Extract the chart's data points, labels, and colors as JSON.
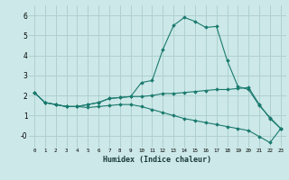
{
  "xlabel": "Humidex (Indice chaleur)",
  "bg_color": "#cce8e8",
  "grid_color": "#b0d0d0",
  "line_color": "#1a7a6e",
  "x_values": [
    0,
    1,
    2,
    3,
    4,
    5,
    6,
    7,
    8,
    9,
    10,
    11,
    12,
    13,
    14,
    15,
    16,
    17,
    18,
    19,
    20,
    21,
    22,
    23
  ],
  "series": [
    [
      2.15,
      1.65,
      1.55,
      1.45,
      1.45,
      1.55,
      1.65,
      1.85,
      1.9,
      1.95,
      2.65,
      2.75,
      4.3,
      5.5,
      5.9,
      5.7,
      5.4,
      5.45,
      3.75,
      2.45,
      2.3,
      1.5,
      0.9,
      0.35
    ],
    [
      2.15,
      1.65,
      1.55,
      1.45,
      1.45,
      1.55,
      1.65,
      1.85,
      1.9,
      1.95,
      1.95,
      2.0,
      2.1,
      2.1,
      2.15,
      2.2,
      2.25,
      2.3,
      2.3,
      2.35,
      2.4,
      1.55,
      0.85,
      0.35
    ],
    [
      2.15,
      1.65,
      1.55,
      1.45,
      1.45,
      1.4,
      1.45,
      1.5,
      1.55,
      1.55,
      1.45,
      1.3,
      1.15,
      1.0,
      0.85,
      0.75,
      0.65,
      0.55,
      0.45,
      0.35,
      0.25,
      -0.05,
      -0.35,
      0.35
    ]
  ],
  "ylim": [
    -0.6,
    6.5
  ],
  "xlim": [
    -0.5,
    23.5
  ],
  "yticks": [
    0,
    1,
    2,
    3,
    4,
    5,
    6
  ],
  "ytick_labels": [
    "-0",
    "1",
    "2",
    "3",
    "4",
    "5",
    "6"
  ],
  "xticks": [
    0,
    1,
    2,
    3,
    4,
    5,
    6,
    7,
    8,
    9,
    10,
    11,
    12,
    13,
    14,
    15,
    16,
    17,
    18,
    19,
    20,
    21,
    22,
    23
  ]
}
